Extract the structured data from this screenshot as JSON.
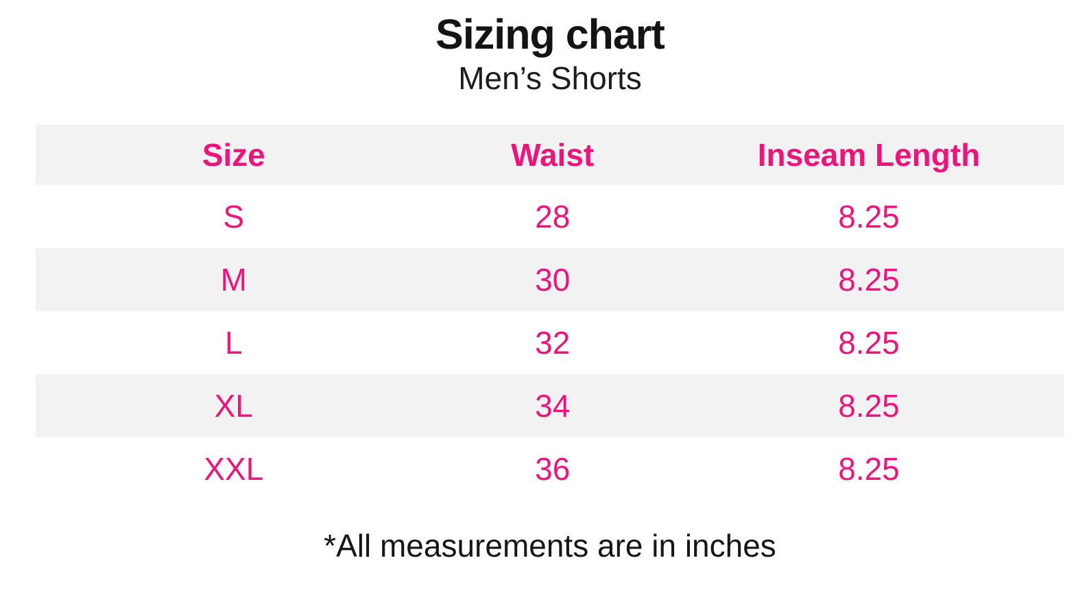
{
  "page": {
    "title": "Sizing chart",
    "subtitle": "Men’s Shorts",
    "footnote": "*All measurements are in inches"
  },
  "colors": {
    "accent_pink": "#ED147B",
    "alt_row_gray": "#F2F2F3",
    "text_black": "#141414",
    "background": "#FFFFFF"
  },
  "table": {
    "columns": {
      "size": "Size",
      "waist": "Waist",
      "inseam": "Inseam Length"
    },
    "rows": [
      {
        "size": "S",
        "waist": "28",
        "inseam": "8.25"
      },
      {
        "size": "M",
        "waist": "30",
        "inseam": "8.25"
      },
      {
        "size": "L",
        "waist": "32",
        "inseam": "8.25"
      },
      {
        "size": "XL",
        "waist": "34",
        "inseam": "8.25"
      },
      {
        "size": "XXL",
        "waist": "36",
        "inseam": "8.25"
      }
    ]
  },
  "chart_data": {
    "type": "table",
    "title": "Sizing chart",
    "subtitle": "Men’s Shorts",
    "columns": [
      "Size",
      "Waist",
      "Inseam Length"
    ],
    "rows": [
      [
        "S",
        28,
        8.25
      ],
      [
        "M",
        30,
        8.25
      ],
      [
        "L",
        32,
        8.25
      ],
      [
        "XL",
        34,
        8.25
      ],
      [
        "XXL",
        36,
        8.25
      ]
    ],
    "footnote": "*All measurements are in inches",
    "units": "inches",
    "layout": {
      "header_background": "#F2F2F3",
      "alternating_rows": true,
      "text_color": "#ED147B"
    }
  }
}
